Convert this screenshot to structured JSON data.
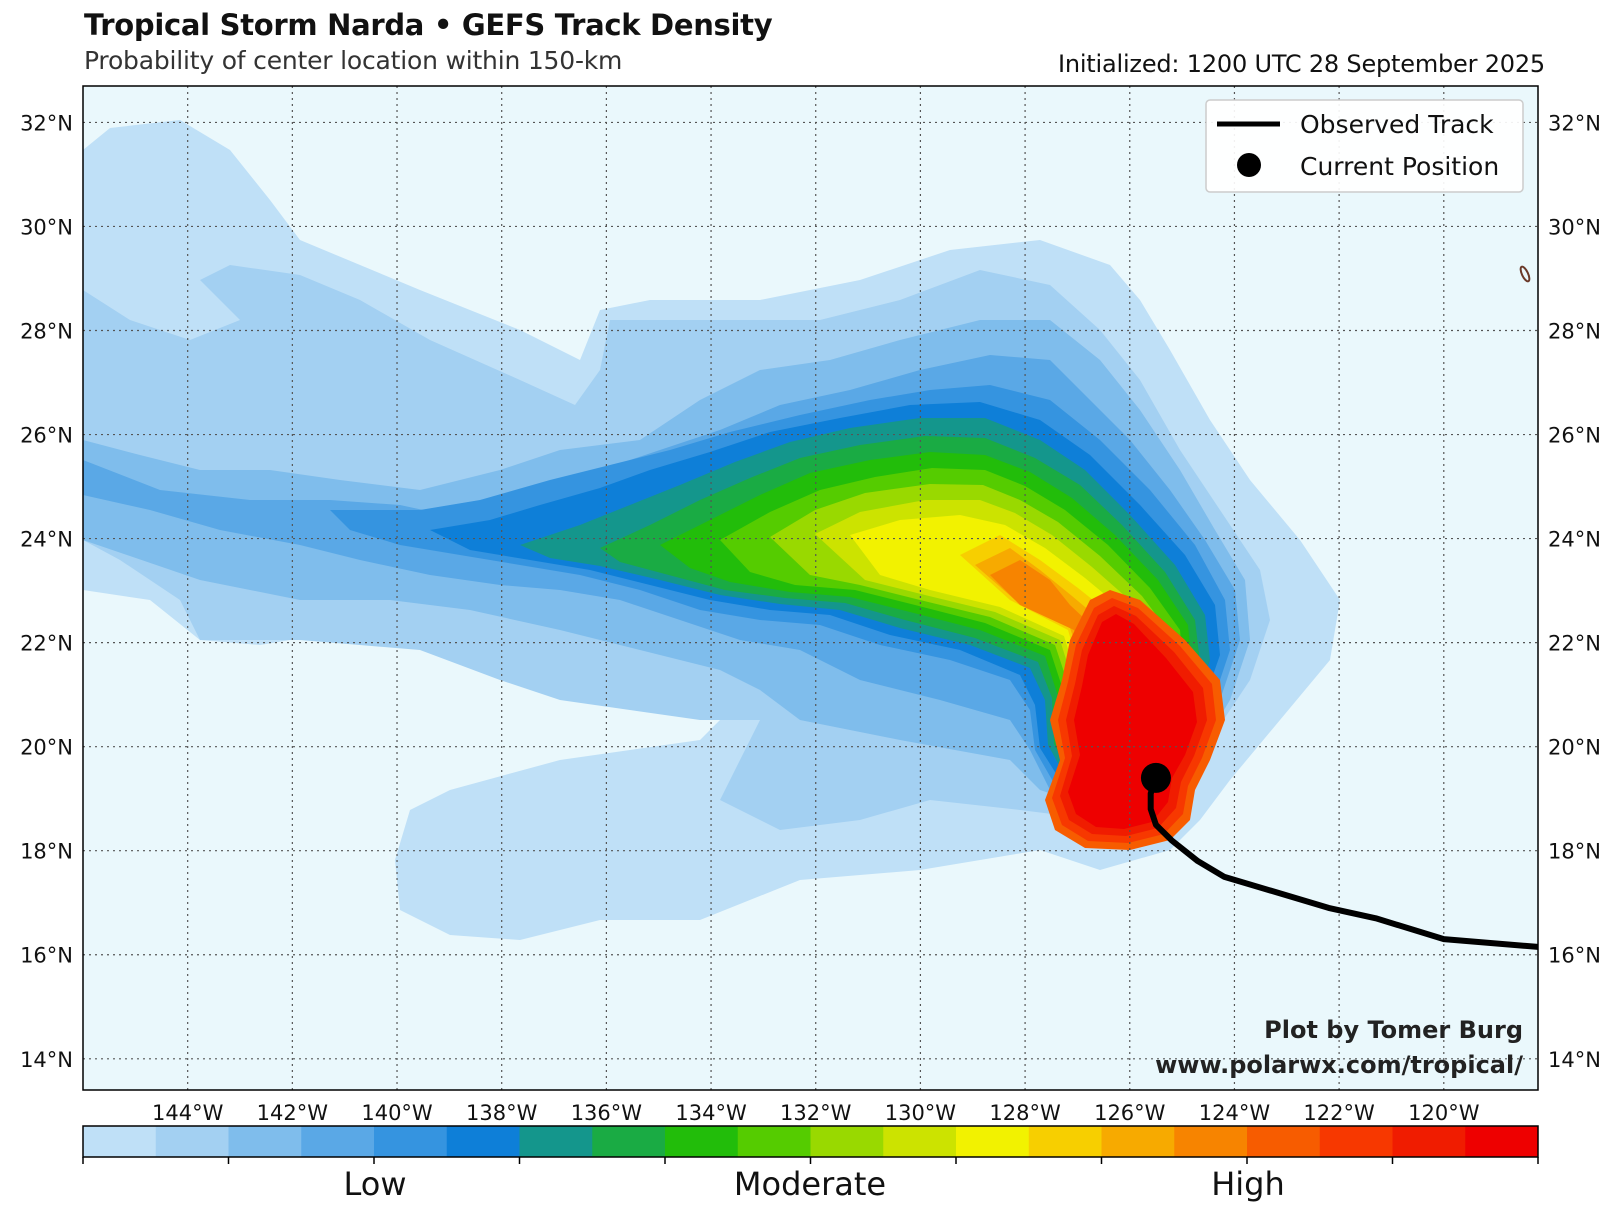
{
  "title": "Tropical Storm Narda • GEFS Track Density",
  "subtitle": "Probability of center location within 150-km",
  "initialized": "Initialized: 1200 UTC 28 September 2025",
  "map": {
    "lon_range": [
      -146,
      -118.2
    ],
    "lat_range": [
      13.4,
      32.7
    ],
    "ocean_color": "#eaf8fc",
    "lon_ticks": [
      "144°W",
      "142°W",
      "140°W",
      "138°W",
      "136°W",
      "134°W",
      "132°W",
      "130°W",
      "128°W",
      "126°W",
      "124°W",
      "122°W",
      "120°W"
    ],
    "lat_ticks": [
      "14°N",
      "16°N",
      "18°N",
      "20°N",
      "22°N",
      "24°N",
      "26°N",
      "28°N",
      "30°N",
      "32°N"
    ],
    "gridlines": true
  },
  "density_levels": [
    "#bfe0f7",
    "#a3d0f2",
    "#7fbdec",
    "#5aa8e6",
    "#3594e0",
    "#0e7fd8",
    "#14968c",
    "#1aab44",
    "#22bd0a",
    "#55cc00",
    "#99d900",
    "#cce300",
    "#f2f200",
    "#f7cf00",
    "#f7aa00",
    "#f78400",
    "#f75c00",
    "#f73800",
    "#f01c00",
    "#ee0000"
  ],
  "colorbar_labels": [
    "Low",
    "Moderate",
    "High"
  ],
  "legend": {
    "observed_track": "Observed Track",
    "current_position": "Current Position"
  },
  "observed_track": [
    {
      "lon": -118.2,
      "lat": 16.15
    },
    {
      "lon": -120.0,
      "lat": 16.3
    },
    {
      "lon": -121.3,
      "lat": 16.7
    },
    {
      "lon": -122.2,
      "lat": 16.9
    },
    {
      "lon": -123.2,
      "lat": 17.2
    },
    {
      "lon": -124.2,
      "lat": 17.5
    },
    {
      "lon": -124.7,
      "lat": 17.8
    },
    {
      "lon": -125.2,
      "lat": 18.2
    },
    {
      "lon": -125.5,
      "lat": 18.5
    },
    {
      "lon": -125.6,
      "lat": 18.8
    },
    {
      "lon": -125.6,
      "lat": 19.1
    },
    {
      "lon": -125.5,
      "lat": 19.4
    }
  ],
  "current_position": {
    "lon": -125.5,
    "lat": 19.4
  },
  "credit": {
    "line1": "Plot by Tomer Burg",
    "line2": "www.polarwx.com/tropical/"
  }
}
